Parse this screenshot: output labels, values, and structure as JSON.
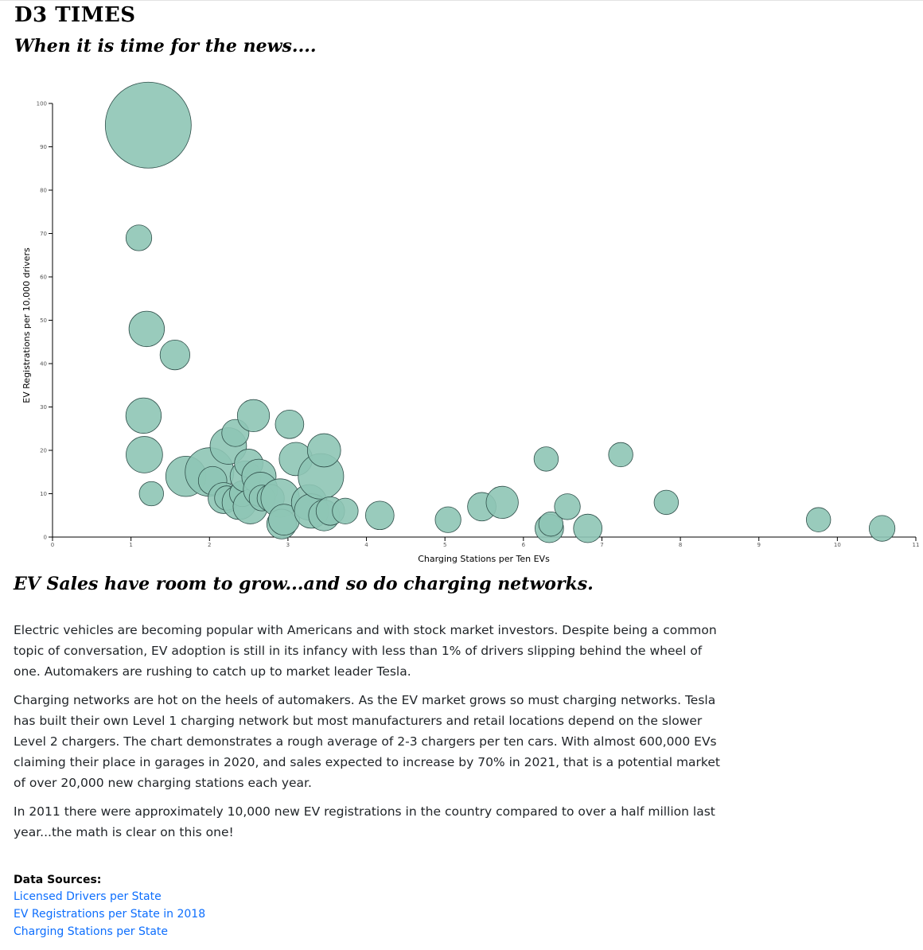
{
  "header": {
    "masthead": "D3 TIMES",
    "tagline": "When it is time for the news...."
  },
  "colors": {
    "bubble_fill": "#8ec5b5",
    "bubble_stroke": "#2f4f4a",
    "link": "#0d6efd"
  },
  "chart_data": {
    "type": "scatter",
    "xlabel": "Charging Stations per Ten EVs",
    "ylabel": "EV Registrations per 10,000 drivers",
    "xlim": [
      0,
      11
    ],
    "ylim": [
      0,
      100
    ],
    "x_ticks": [
      0,
      1,
      2,
      3,
      4,
      5,
      6,
      7,
      8,
      9,
      10,
      11
    ],
    "y_ticks": [
      0,
      10,
      20,
      30,
      40,
      50,
      60,
      70,
      80,
      90,
      100
    ],
    "grid": false,
    "points": [
      {
        "x": 1.22,
        "y": 95,
        "size": 100
      },
      {
        "x": 1.1,
        "y": 69,
        "size": 9
      },
      {
        "x": 1.2,
        "y": 48,
        "size": 17
      },
      {
        "x": 1.56,
        "y": 42,
        "size": 12
      },
      {
        "x": 1.16,
        "y": 28,
        "size": 17
      },
      {
        "x": 1.17,
        "y": 19,
        "size": 18
      },
      {
        "x": 1.26,
        "y": 10,
        "size": 8
      },
      {
        "x": 1.7,
        "y": 14,
        "size": 22
      },
      {
        "x": 2.0,
        "y": 15,
        "size": 32
      },
      {
        "x": 2.04,
        "y": 13,
        "size": 11
      },
      {
        "x": 2.24,
        "y": 21,
        "size": 18
      },
      {
        "x": 2.33,
        "y": 24,
        "size": 10
      },
      {
        "x": 2.18,
        "y": 9,
        "size": 13
      },
      {
        "x": 2.22,
        "y": 9,
        "size": 8
      },
      {
        "x": 2.38,
        "y": 8,
        "size": 16
      },
      {
        "x": 2.42,
        "y": 10,
        "size": 9
      },
      {
        "x": 2.46,
        "y": 14,
        "size": 13
      },
      {
        "x": 2.5,
        "y": 17,
        "size": 11
      },
      {
        "x": 2.52,
        "y": 7,
        "size": 16
      },
      {
        "x": 2.56,
        "y": 28,
        "size": 14
      },
      {
        "x": 2.63,
        "y": 14,
        "size": 16
      },
      {
        "x": 2.65,
        "y": 11,
        "size": 16
      },
      {
        "x": 2.67,
        "y": 9,
        "size": 9
      },
      {
        "x": 2.78,
        "y": 9,
        "size": 10
      },
      {
        "x": 2.9,
        "y": 9,
        "size": 20
      },
      {
        "x": 2.92,
        "y": 3,
        "size": 12
      },
      {
        "x": 2.95,
        "y": 4,
        "size": 13
      },
      {
        "x": 3.02,
        "y": 26,
        "size": 11
      },
      {
        "x": 3.1,
        "y": 18,
        "size": 15
      },
      {
        "x": 3.27,
        "y": 8,
        "size": 17
      },
      {
        "x": 3.3,
        "y": 6,
        "size": 16
      },
      {
        "x": 3.42,
        "y": 14,
        "size": 28
      },
      {
        "x": 3.46,
        "y": 20,
        "size": 15
      },
      {
        "x": 3.46,
        "y": 5,
        "size": 13
      },
      {
        "x": 3.54,
        "y": 6,
        "size": 11
      },
      {
        "x": 3.73,
        "y": 6,
        "size": 9
      },
      {
        "x": 4.17,
        "y": 5,
        "size": 11
      },
      {
        "x": 5.04,
        "y": 4,
        "size": 9
      },
      {
        "x": 5.47,
        "y": 7,
        "size": 11
      },
      {
        "x": 5.73,
        "y": 8,
        "size": 14
      },
      {
        "x": 6.29,
        "y": 18,
        "size": 8
      },
      {
        "x": 6.33,
        "y": 2,
        "size": 11
      },
      {
        "x": 6.35,
        "y": 3,
        "size": 8
      },
      {
        "x": 6.56,
        "y": 7,
        "size": 9
      },
      {
        "x": 6.82,
        "y": 2,
        "size": 11
      },
      {
        "x": 7.24,
        "y": 19,
        "size": 8
      },
      {
        "x": 7.82,
        "y": 8,
        "size": 8
      },
      {
        "x": 9.76,
        "y": 4,
        "size": 8
      },
      {
        "x": 10.57,
        "y": 2,
        "size": 9
      }
    ]
  },
  "article": {
    "headline": "EV Sales have room to grow...and so do charging networks.",
    "paragraphs": [
      "Electric vehicles are becoming popular with Americans and with stock market investors. Despite being a common topic of conversation, EV adoption is still in its infancy with less than 1% of drivers slipping behind the wheel of one. Automakers are rushing to catch up to market leader Tesla.",
      "Charging networks are hot on the heels of automakers. As the EV market grows so must charging networks. Tesla has built their own Level 1 charging network but most manufacturers and retail locations depend on the slower Level 2 chargers. The chart demonstrates a rough average of 2-3 chargers per ten cars. With almost 600,000 EVs claiming their place in garages in 2020, and sales expected to increase by 70% in 2021, that is a potential market of over 20,000 new charging stations each year.",
      "In 2011 there were approximately 10,000 new EV registrations in the country compared to over a half million last year...the math is clear on this one!"
    ]
  },
  "sources": {
    "title": "Data Sources:",
    "links": [
      "Licensed Drivers per State",
      "EV Registrations per State in 2018",
      "Charging Stations per State"
    ]
  }
}
